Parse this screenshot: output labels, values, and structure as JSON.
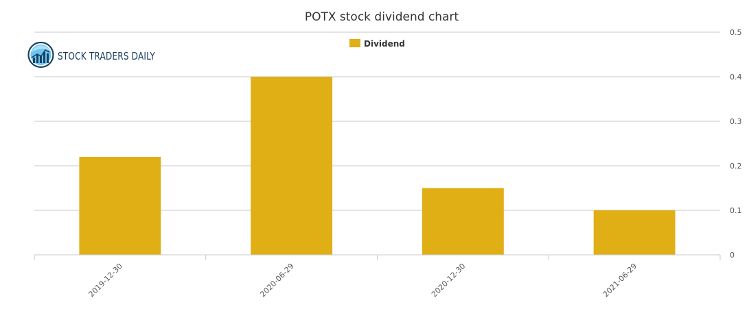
{
  "logo": {
    "text": "STOCK TRADERS DAILY",
    "icon": "bar-chart-globe-icon",
    "colors": {
      "ring": "#1b3f63",
      "fill": "#6cc6ee",
      "bars": "#1b3f63",
      "text": "#163a5c"
    }
  },
  "chart_data": {
    "type": "bar",
    "title": "POTX stock dividend chart",
    "categories": [
      "2019-12-30",
      "2020-06-29",
      "2020-12-30",
      "2021-06-29"
    ],
    "series": [
      {
        "name": "Dividend",
        "values": [
          0.22,
          0.4,
          0.15,
          0.1
        ],
        "color": "#dfaf15"
      }
    ],
    "ylim": [
      0,
      0.5
    ],
    "yticks": [
      0,
      0.1,
      0.2,
      0.3,
      0.4,
      0.5
    ],
    "ytick_labels": [
      "0",
      "0.1",
      "0.2",
      "0.3",
      "0.4",
      "0.5"
    ],
    "yaxis_side": "right",
    "xtick_rotation": -45,
    "grid": true,
    "legend": "top-center"
  }
}
